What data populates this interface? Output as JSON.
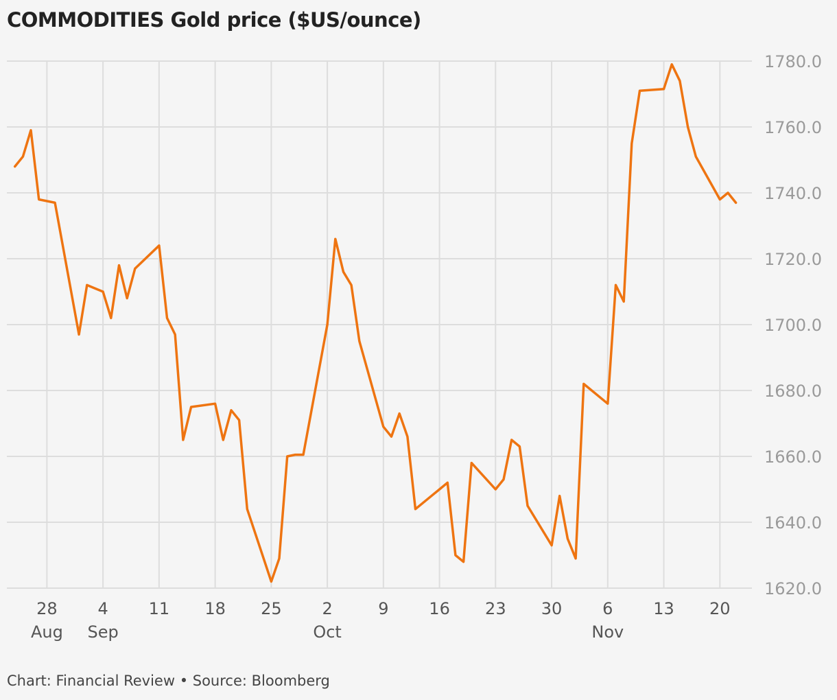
{
  "header": {
    "title_prefix": "COMMODITIES",
    "title_main": "Gold price ($US/ounce)"
  },
  "footer": {
    "credit": "Chart: Financial Review • Source: Bloomberg"
  },
  "colors": {
    "line": "#ee7411",
    "grid": "#dddddd",
    "background": "#f5f5f5"
  },
  "chart_data": {
    "type": "line",
    "title": "COMMODITIES Gold price ($US/ounce)",
    "xlabel": "",
    "ylabel": "",
    "y_axis_position": "right",
    "grid": true,
    "ylim": [
      1620,
      1780
    ],
    "yticks": [
      "1780.0",
      "1760.0",
      "1740.0",
      "1720.0",
      "1700.0",
      "1680.0",
      "1660.0",
      "1640.0",
      "1620.0"
    ],
    "x_range": [
      "2020-08-23",
      "2020-11-24"
    ],
    "xticks": [
      {
        "date": "2020-08-28",
        "label": "28",
        "month": "Aug"
      },
      {
        "date": "2020-09-04",
        "label": "4",
        "month": "Sep"
      },
      {
        "date": "2020-09-11",
        "label": "11",
        "month": ""
      },
      {
        "date": "2020-09-18",
        "label": "18",
        "month": ""
      },
      {
        "date": "2020-09-25",
        "label": "25",
        "month": ""
      },
      {
        "date": "2020-10-02",
        "label": "2",
        "month": "Oct"
      },
      {
        "date": "2020-10-09",
        "label": "9",
        "month": ""
      },
      {
        "date": "2020-10-16",
        "label": "16",
        "month": ""
      },
      {
        "date": "2020-10-23",
        "label": "23",
        "month": ""
      },
      {
        "date": "2020-10-30",
        "label": "30",
        "month": ""
      },
      {
        "date": "2020-11-06",
        "label": "6",
        "month": "Nov"
      },
      {
        "date": "2020-11-13",
        "label": "13",
        "month": ""
      },
      {
        "date": "2020-11-20",
        "label": "20",
        "month": ""
      }
    ],
    "series": [
      {
        "name": "",
        "points": [
          [
            "2020-08-24",
            1748
          ],
          [
            "2020-08-25",
            1751
          ],
          [
            "2020-08-26",
            1759
          ],
          [
            "2020-08-27",
            1738
          ],
          [
            "2020-08-28",
            1737.5
          ],
          [
            "2020-08-29",
            1737
          ],
          [
            "2020-09-01",
            1697
          ],
          [
            "2020-09-02",
            1712
          ],
          [
            "2020-09-03",
            1711
          ],
          [
            "2020-09-04",
            1710
          ],
          [
            "2020-09-05",
            1702
          ],
          [
            "2020-09-06",
            1718
          ],
          [
            "2020-09-07",
            1708
          ],
          [
            "2020-09-08",
            1717
          ],
          [
            "2020-09-11",
            1724
          ],
          [
            "2020-09-12",
            1702
          ],
          [
            "2020-09-13",
            1697
          ],
          [
            "2020-09-14",
            1665
          ],
          [
            "2020-09-15",
            1675
          ],
          [
            "2020-09-18",
            1676
          ],
          [
            "2020-09-19",
            1665
          ],
          [
            "2020-09-20",
            1674
          ],
          [
            "2020-09-21",
            1671
          ],
          [
            "2020-09-22",
            1644
          ],
          [
            "2020-09-25",
            1622
          ],
          [
            "2020-09-26",
            1629
          ],
          [
            "2020-09-27",
            1660
          ],
          [
            "2020-09-28",
            1660.5
          ],
          [
            "2020-09-29",
            1660.5
          ],
          [
            "2020-10-02",
            1700
          ],
          [
            "2020-10-03",
            1726
          ],
          [
            "2020-10-04",
            1716
          ],
          [
            "2020-10-05",
            1712
          ],
          [
            "2020-10-06",
            1695
          ],
          [
            "2020-10-09",
            1669
          ],
          [
            "2020-10-10",
            1666
          ],
          [
            "2020-10-11",
            1673
          ],
          [
            "2020-10-12",
            1666
          ],
          [
            "2020-10-13",
            1644
          ],
          [
            "2020-10-16",
            1650
          ],
          [
            "2020-10-17",
            1652
          ],
          [
            "2020-10-18",
            1630
          ],
          [
            "2020-10-19",
            1628
          ],
          [
            "2020-10-20",
            1658
          ],
          [
            "2020-10-23",
            1650
          ],
          [
            "2020-10-24",
            1653
          ],
          [
            "2020-10-25",
            1665
          ],
          [
            "2020-10-26",
            1663
          ],
          [
            "2020-10-27",
            1645
          ],
          [
            "2020-10-30",
            1633
          ],
          [
            "2020-10-31",
            1648
          ],
          [
            "2020-11-01",
            1635
          ],
          [
            "2020-11-02",
            1629
          ],
          [
            "2020-11-03",
            1682
          ],
          [
            "2020-11-06",
            1676
          ],
          [
            "2020-11-07",
            1712
          ],
          [
            "2020-11-08",
            1707
          ],
          [
            "2020-11-09",
            1755
          ],
          [
            "2020-11-10",
            1771
          ],
          [
            "2020-11-13",
            1771.5
          ],
          [
            "2020-11-14",
            1779
          ],
          [
            "2020-11-15",
            1774
          ],
          [
            "2020-11-16",
            1760
          ],
          [
            "2020-11-17",
            1751
          ],
          [
            "2020-11-20",
            1738
          ],
          [
            "2020-11-21",
            1740
          ],
          [
            "2020-11-22",
            1737
          ]
        ]
      }
    ]
  }
}
